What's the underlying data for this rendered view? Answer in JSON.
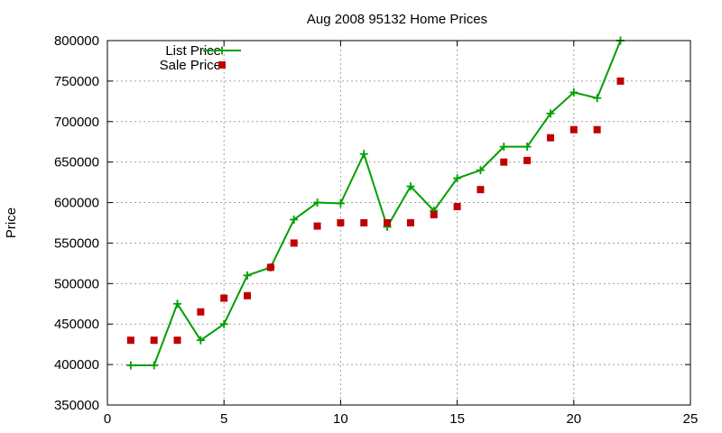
{
  "chart_data": {
    "type": "line",
    "title": "Aug 2008 95132 Home Prices",
    "xlabel": "",
    "ylabel": "Price",
    "xlim": [
      0,
      25
    ],
    "ylim": [
      350000,
      800000
    ],
    "x_ticks": [
      0,
      5,
      10,
      15,
      20,
      25
    ],
    "y_ticks": [
      350000,
      400000,
      450000,
      500000,
      550000,
      600000,
      650000,
      700000,
      750000,
      800000
    ],
    "grid": true,
    "legend_position": "top-left",
    "series": [
      {
        "name": "List Price",
        "style": "lines+points",
        "marker": "plus",
        "color": "#00a000",
        "points": [
          [
            1,
            399000
          ],
          [
            2,
            399000
          ],
          [
            3,
            475000
          ],
          [
            4,
            430000
          ],
          [
            5,
            450000
          ],
          [
            6,
            510000
          ],
          [
            7,
            520000
          ],
          [
            8,
            579000
          ],
          [
            9,
            600000
          ],
          [
            10,
            599000
          ],
          [
            11,
            660000
          ],
          [
            12,
            570000
          ],
          [
            13,
            620000
          ],
          [
            14,
            590000
          ],
          [
            15,
            630000
          ],
          [
            16,
            640000
          ],
          [
            17,
            669000
          ],
          [
            18,
            669000
          ],
          [
            19,
            710000
          ],
          [
            20,
            736000
          ],
          [
            21,
            729000
          ],
          [
            22,
            800000
          ]
        ]
      },
      {
        "name": "Sale Price",
        "style": "points",
        "marker": "square",
        "color": "#c00000",
        "points": [
          [
            1,
            430000
          ],
          [
            2,
            430000
          ],
          [
            3,
            430000
          ],
          [
            4,
            465000
          ],
          [
            5,
            482000
          ],
          [
            6,
            485000
          ],
          [
            7,
            520000
          ],
          [
            8,
            550000
          ],
          [
            9,
            571000
          ],
          [
            10,
            575000
          ],
          [
            11,
            575000
          ],
          [
            12,
            575000
          ],
          [
            13,
            575000
          ],
          [
            14,
            585000
          ],
          [
            15,
            595000
          ],
          [
            16,
            616000
          ],
          [
            17,
            650000
          ],
          [
            18,
            652000
          ],
          [
            19,
            680000
          ],
          [
            20,
            690000
          ],
          [
            21,
            690000
          ],
          [
            22,
            750000
          ]
        ]
      }
    ]
  }
}
